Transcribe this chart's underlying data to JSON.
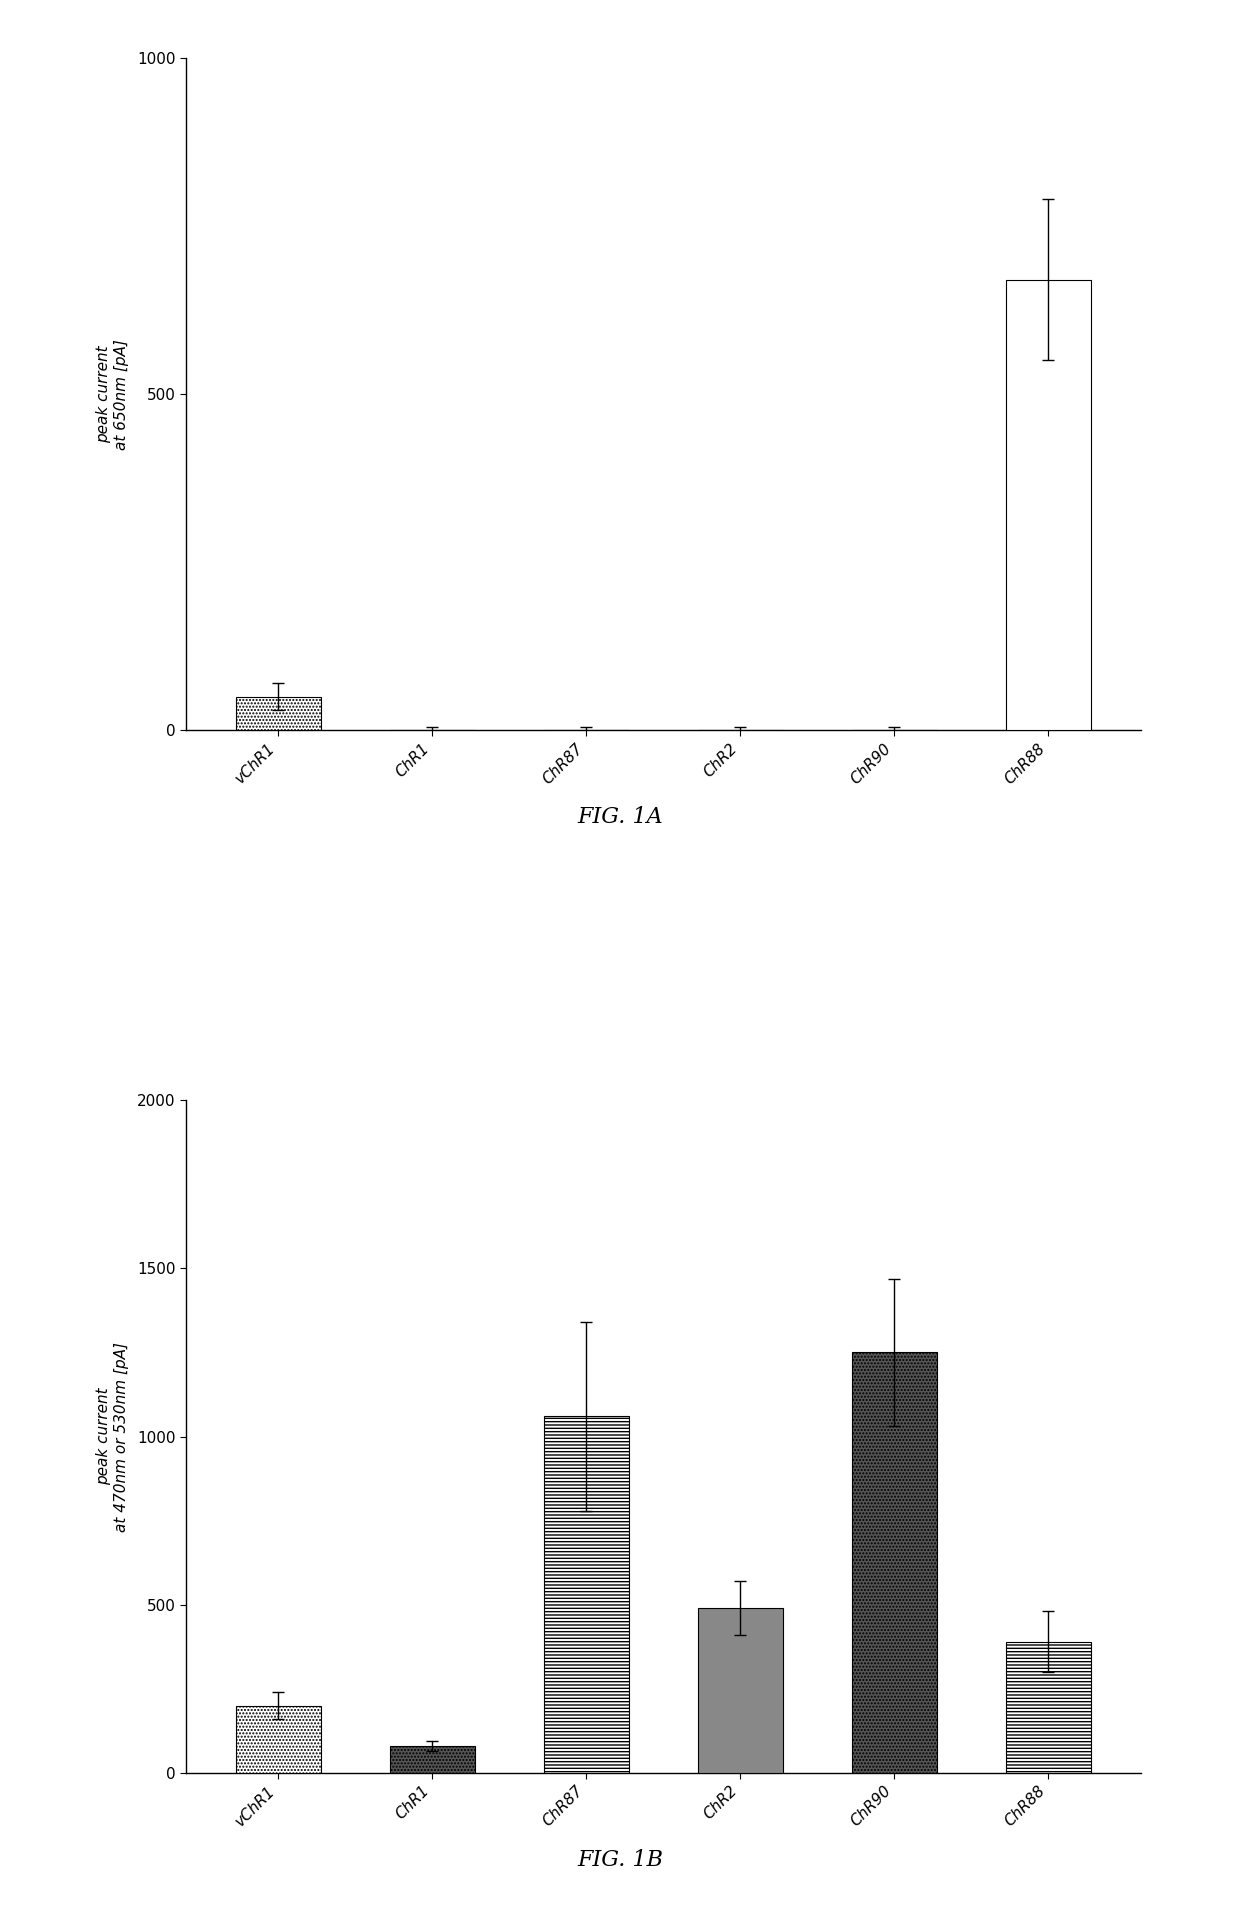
{
  "fig1a": {
    "categories": [
      "vChR1",
      "ChR1",
      "ChR87",
      "ChR2",
      "ChR90",
      "ChR88"
    ],
    "values": [
      50,
      0,
      0,
      0,
      0,
      670
    ],
    "errors": [
      20,
      5,
      5,
      5,
      5,
      120
    ],
    "ylabel": "peak current\nat 650nm [pA]",
    "ylim": [
      0,
      1000
    ],
    "yticks": [
      0,
      500,
      1000
    ],
    "title": "FIG. 1A",
    "bar_styles": [
      {
        "color": "white",
        "hatch": ".....",
        "edgecolor": "black"
      },
      {
        "color": "black",
        "hatch": "",
        "edgecolor": "black"
      },
      {
        "color": "white",
        "hatch": ".....",
        "edgecolor": "black"
      },
      {
        "color": "black",
        "hatch": "",
        "edgecolor": "black"
      },
      {
        "color": "#888888",
        "hatch": "",
        "edgecolor": "black"
      },
      {
        "color": "white",
        "hatch": "",
        "edgecolor": "black"
      }
    ]
  },
  "fig1b": {
    "categories": [
      "vChR1",
      "ChR1",
      "ChR87",
      "ChR2",
      "ChR90",
      "ChR88"
    ],
    "values": [
      200,
      80,
      1060,
      490,
      1250,
      390
    ],
    "errors": [
      40,
      15,
      280,
      80,
      220,
      90
    ],
    "ylabel": "peak current\nat 470nm or 530nm [pA]",
    "ylim": [
      0,
      2000
    ],
    "yticks": [
      0,
      500,
      1000,
      1500,
      2000
    ],
    "title": "FIG. 1B",
    "bar_styles": [
      {
        "color": "white",
        "hatch": ".....",
        "edgecolor": "black"
      },
      {
        "color": "#555555",
        "hatch": ".....",
        "edgecolor": "black"
      },
      {
        "color": "white",
        "hatch": "-----",
        "edgecolor": "black"
      },
      {
        "color": "#888888",
        "hatch": "",
        "edgecolor": "black"
      },
      {
        "color": "#555555",
        "hatch": ".....",
        "edgecolor": "black"
      },
      {
        "color": "white",
        "hatch": "-----",
        "edgecolor": "black"
      }
    ]
  },
  "background_color": "#ffffff",
  "bar_width": 0.55,
  "tick_font_size": 11,
  "label_font_size": 11,
  "title_font_size": 16
}
